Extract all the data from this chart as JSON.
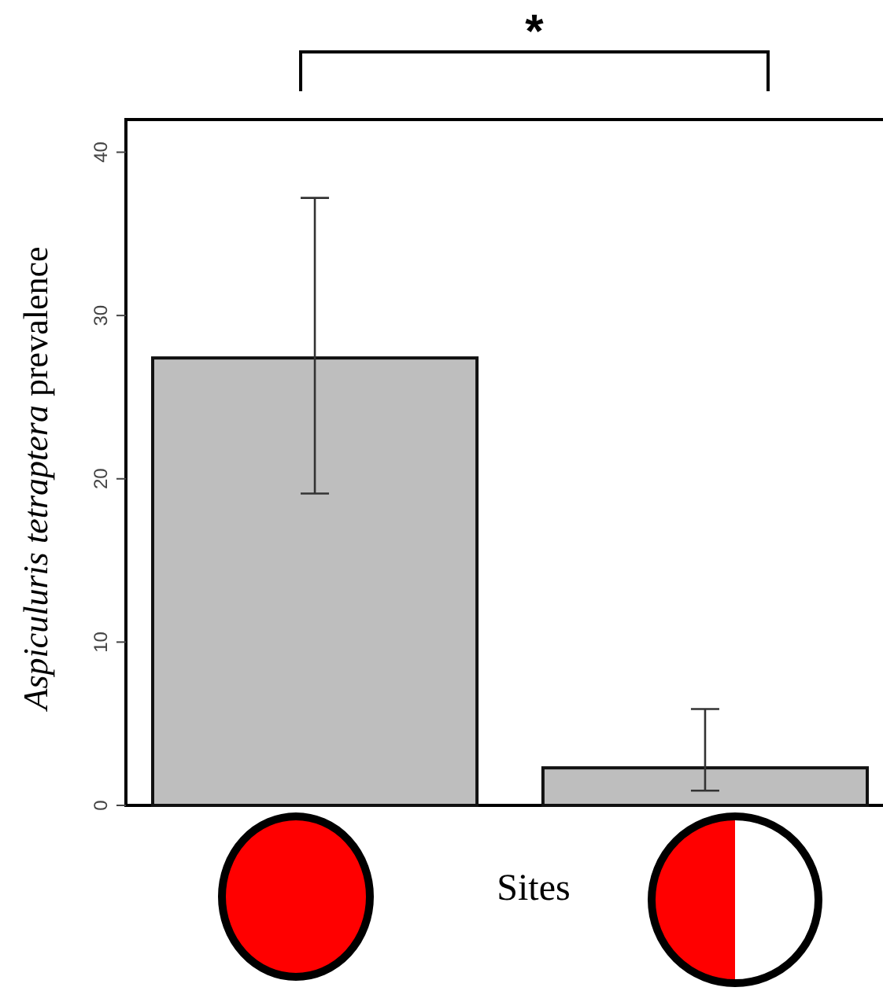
{
  "chart_data": {
    "type": "bar",
    "categories": [
      null,
      null
    ],
    "values": [
      27.4,
      2.3
    ],
    "errors": [
      [
        19.1,
        37.2
      ],
      [
        0.9,
        5.9
      ]
    ],
    "color": "#bebebe",
    "xlabel": "Sites",
    "ylabel": "Aspiculuris tetraptera prevalence",
    "ylim": [
      0,
      42
    ],
    "yticks": [
      0,
      10,
      20,
      30,
      40
    ],
    "annotations": [
      "*"
    ],
    "grid": false
  }
}
